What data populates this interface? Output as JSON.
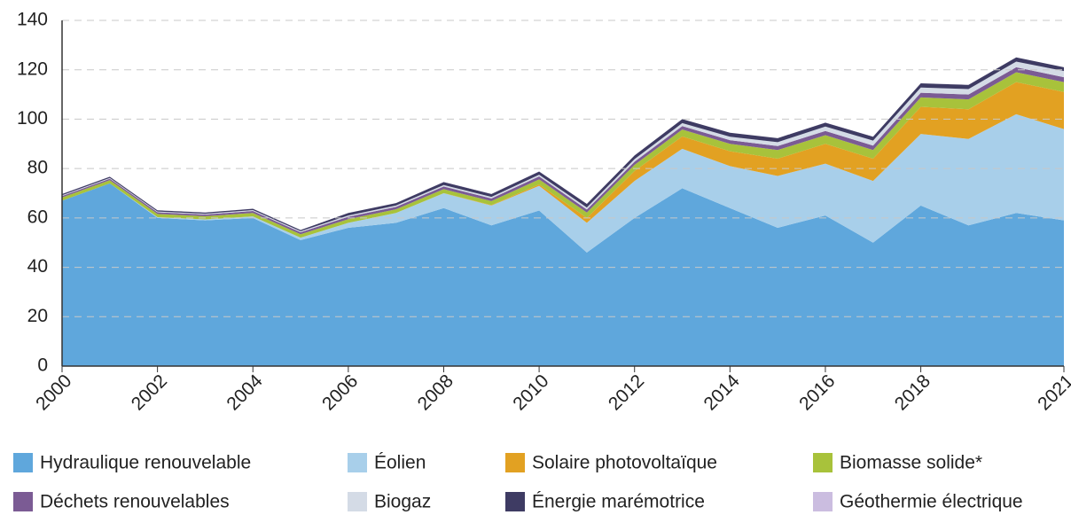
{
  "chart_data": {
    "type": "stacked_area",
    "x": [
      2000,
      2001,
      2002,
      2003,
      2004,
      2005,
      2006,
      2007,
      2008,
      2009,
      2010,
      2011,
      2012,
      2013,
      2014,
      2015,
      2016,
      2017,
      2018,
      2019,
      2020,
      2021
    ],
    "xlim": [
      2000,
      2021
    ],
    "xticks": [
      2000,
      2002,
      2004,
      2006,
      2008,
      2010,
      2012,
      2014,
      2016,
      2018,
      2021
    ],
    "ylim": [
      0,
      140
    ],
    "yticks": [
      0,
      20,
      40,
      60,
      80,
      100,
      120,
      140
    ],
    "grid": true,
    "series": [
      {
        "name": "Hydraulique renouvelable",
        "color": "#5fa7dc",
        "values": [
          67,
          74,
          60,
          59,
          60,
          51,
          56,
          58,
          64,
          57,
          63,
          46,
          60,
          72,
          64,
          56,
          61,
          50,
          65,
          57,
          62,
          59
        ]
      },
      {
        "name": "Éolien",
        "color": "#a8cfea",
        "values": [
          0,
          0,
          0.3,
          0.4,
          0.6,
          1,
          2,
          4,
          6,
          8,
          10,
          12,
          15,
          16,
          17,
          21,
          21,
          25,
          29,
          35,
          40,
          37
        ]
      },
      {
        "name": "Solaire photovoltaïque",
        "color": "#e2a122",
        "values": [
          0,
          0,
          0,
          0,
          0,
          0,
          0,
          0,
          0.04,
          0.2,
          0.6,
          2,
          4,
          5,
          6,
          7,
          8,
          9,
          11,
          12,
          13,
          15
        ]
      },
      {
        "name": "Biomasse solide*",
        "color": "#a8c23b",
        "values": [
          1.3,
          1.3,
          1.3,
          1.3,
          1.4,
          1.4,
          1.5,
          1.5,
          1.6,
          1.6,
          2,
          2.2,
          2.5,
          2.8,
          3,
          3.5,
          3.5,
          3.5,
          3.8,
          4,
          4,
          4
        ]
      },
      {
        "name": "Déchets renouvelables",
        "color": "#7b5b94",
        "values": [
          0.6,
          0.6,
          0.7,
          0.7,
          0.8,
          0.8,
          1,
          1,
          1.1,
          1.1,
          1.2,
          1.2,
          1.3,
          1.4,
          1.5,
          1.6,
          1.7,
          1.8,
          1.9,
          2,
          2,
          2
        ]
      },
      {
        "name": "Biogaz",
        "color": "#d4dbe6",
        "values": [
          0.3,
          0.3,
          0.3,
          0.3,
          0.4,
          0.4,
          0.5,
          0.5,
          0.6,
          0.6,
          0.7,
          0.8,
          1,
          1.2,
          1.4,
          1.6,
          1.8,
          2,
          2.1,
          2.2,
          2.3,
          2.5
        ]
      },
      {
        "name": "Énergie marémotrice",
        "color": "#3e3b63",
        "values": [
          0.5,
          0.5,
          0.5,
          0.5,
          0.5,
          0.5,
          1,
          1,
          1.2,
          1.2,
          1.3,
          1.5,
          1.5,
          1.6,
          1.6,
          1.6,
          1.6,
          1.6,
          1.7,
          1.7,
          1.7,
          1.5
        ]
      },
      {
        "name": "Géothermie électrique",
        "color": "#cbbde0",
        "values": [
          0.02,
          0.02,
          0.02,
          0.02,
          0.02,
          0.02,
          0.02,
          0.02,
          0.02,
          0.02,
          0.02,
          0.02,
          0.02,
          0.02,
          0.02,
          0.02,
          0.02,
          0.02,
          0.02,
          0.02,
          0.02,
          0.02
        ]
      }
    ]
  }
}
